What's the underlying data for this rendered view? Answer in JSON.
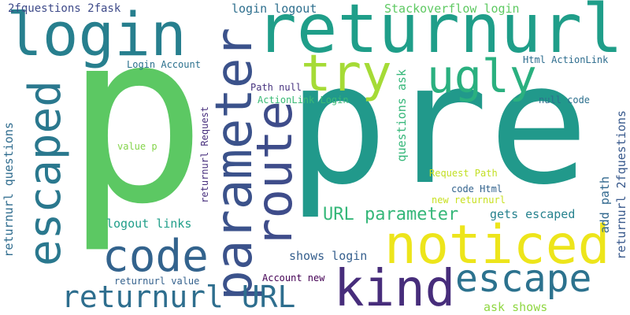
{
  "word_cloud": {
    "words": [
      {
        "text": "pre",
        "color": "#21998b"
      },
      {
        "text": "p",
        "color": "#5cc863"
      },
      {
        "text": "returnurl",
        "color": "#1f9e89"
      },
      {
        "text": "login",
        "color": "#277f8e"
      },
      {
        "text": "parameter",
        "color": "#3b528b"
      },
      {
        "text": "route",
        "color": "#3e4c8a"
      },
      {
        "text": "escaped",
        "color": "#2a788e"
      },
      {
        "text": "noticed",
        "color": "#ede51b"
      },
      {
        "text": "try",
        "color": "#a5db36"
      },
      {
        "text": "ugly",
        "color": "#2ab07f"
      },
      {
        "text": "code",
        "color": "#33638d"
      },
      {
        "text": "kind",
        "color": "#472d7b"
      },
      {
        "text": "escape",
        "color": "#2c728e"
      },
      {
        "text": "returnurl URL",
        "color": "#2e6e8e"
      },
      {
        "text": "URL parameter",
        "color": "#35b779"
      },
      {
        "text": "2fquestions 2fask",
        "color": "#3e4a89"
      },
      {
        "text": "login logout",
        "color": "#2e6f8e"
      },
      {
        "text": "Stackoverflow login",
        "color": "#5ec962"
      },
      {
        "text": "Login Account",
        "color": "#2c718e"
      },
      {
        "text": "Html ActionLink",
        "color": "#2e6d8e"
      },
      {
        "text": "Path null",
        "color": "#46327e"
      },
      {
        "text": "ActionLink Login",
        "color": "#3aba76"
      },
      {
        "text": "questions ask",
        "color": "#35b779"
      },
      {
        "text": "null code",
        "color": "#2d708e"
      },
      {
        "text": "value p",
        "color": "#84d44b"
      },
      {
        "text": "Request Path",
        "color": "#c2df23"
      },
      {
        "text": "code Html",
        "color": "#33638d"
      },
      {
        "text": "new returnurl",
        "color": "#c8e020"
      },
      {
        "text": "returnurl Request",
        "color": "#472f7d"
      },
      {
        "text": "returnurl questions",
        "color": "#2f6c8e"
      },
      {
        "text": "logout links",
        "color": "#1f9e89"
      },
      {
        "text": "gets escaped",
        "color": "#26828e"
      },
      {
        "text": "add path",
        "color": "#31688e"
      },
      {
        "text": "returnurl 2fquestions",
        "color": "#38598c"
      },
      {
        "text": "shows login",
        "color": "#355f8d"
      },
      {
        "text": "returnurl value",
        "color": "#34618d"
      },
      {
        "text": "Account new",
        "color": "#440154"
      },
      {
        "text": "ask shows",
        "color": "#90d743"
      }
    ]
  }
}
